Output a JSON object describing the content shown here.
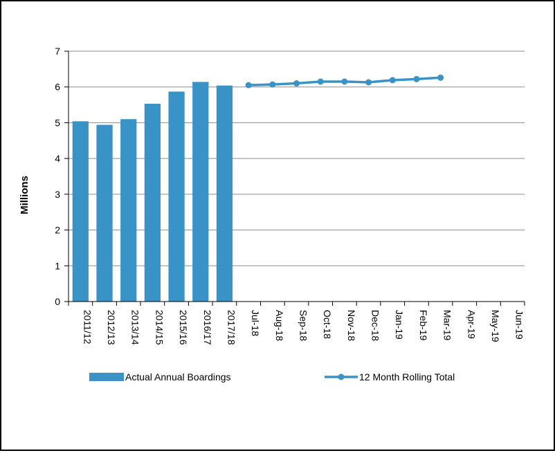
{
  "chart_data": {
    "type": "bar+line",
    "ylabel": "Millions",
    "xlabel": "",
    "title": "",
    "ylim": [
      0,
      7
    ],
    "yticks": [
      "0",
      "1",
      "2",
      "3",
      "4",
      "5",
      "6",
      "7"
    ],
    "grid": true,
    "legend_position": "bottom",
    "categories": [
      "2011/12",
      "2012/13",
      "2013/14",
      "2014/15",
      "2015/16",
      "2016/17",
      "2017/18",
      "Jul-18",
      "Aug-18",
      "Sep-18",
      "Oct-18",
      "Nov-18",
      "Dec-18",
      "Jan-19",
      "Feb-19",
      "Mar-19",
      "Apr-19",
      "May-19",
      "Jun-19"
    ],
    "series": [
      {
        "name": "Actual Annual Boardings",
        "kind": "bar",
        "color": "#3a93c6",
        "points": [
          {
            "category": "2011/12",
            "value": 5.04
          },
          {
            "category": "2012/13",
            "value": 4.94
          },
          {
            "category": "2013/14",
            "value": 5.1
          },
          {
            "category": "2014/15",
            "value": 5.53
          },
          {
            "category": "2015/16",
            "value": 5.87
          },
          {
            "category": "2016/17",
            "value": 6.14
          },
          {
            "category": "2017/18",
            "value": 6.04
          }
        ]
      },
      {
        "name": "12 Month Rolling Total",
        "kind": "line",
        "color": "#3a93c6",
        "points": [
          {
            "category": "Jul-18",
            "value": 6.05
          },
          {
            "category": "Aug-18",
            "value": 6.07
          },
          {
            "category": "Sep-18",
            "value": 6.1
          },
          {
            "category": "Oct-18",
            "value": 6.15
          },
          {
            "category": "Nov-18",
            "value": 6.15
          },
          {
            "category": "Dec-18",
            "value": 6.13
          },
          {
            "category": "Jan-19",
            "value": 6.19
          },
          {
            "category": "Feb-19",
            "value": 6.22
          },
          {
            "category": "Mar-19",
            "value": 6.26
          }
        ]
      }
    ]
  }
}
